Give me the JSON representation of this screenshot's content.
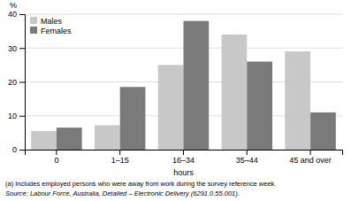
{
  "chart_data": {
    "type": "bar",
    "categories": [
      "0",
      "1–15",
      "16–34",
      "35–44",
      "45 and over"
    ],
    "series": [
      {
        "name": "Males",
        "color": "#c8c8c8",
        "values": [
          5.5,
          7.2,
          25.0,
          34.0,
          29.0
        ]
      },
      {
        "name": "Females",
        "color": "#7a7a7a",
        "values": [
          6.5,
          18.5,
          38.0,
          26.0,
          11.0
        ]
      }
    ],
    "xlabel": "hours",
    "ylabel": "%",
    "ylim": [
      0,
      40
    ],
    "yticks": [
      0,
      10,
      20,
      30,
      40
    ],
    "grid": true,
    "legend": "top-left",
    "annotations": [
      "(a) Includes employed persons who were away from work during the survey reference week.",
      "Source: Labour Force, Australia, Detailed – Electronic Delivery (6291.0.55.001)."
    ]
  }
}
